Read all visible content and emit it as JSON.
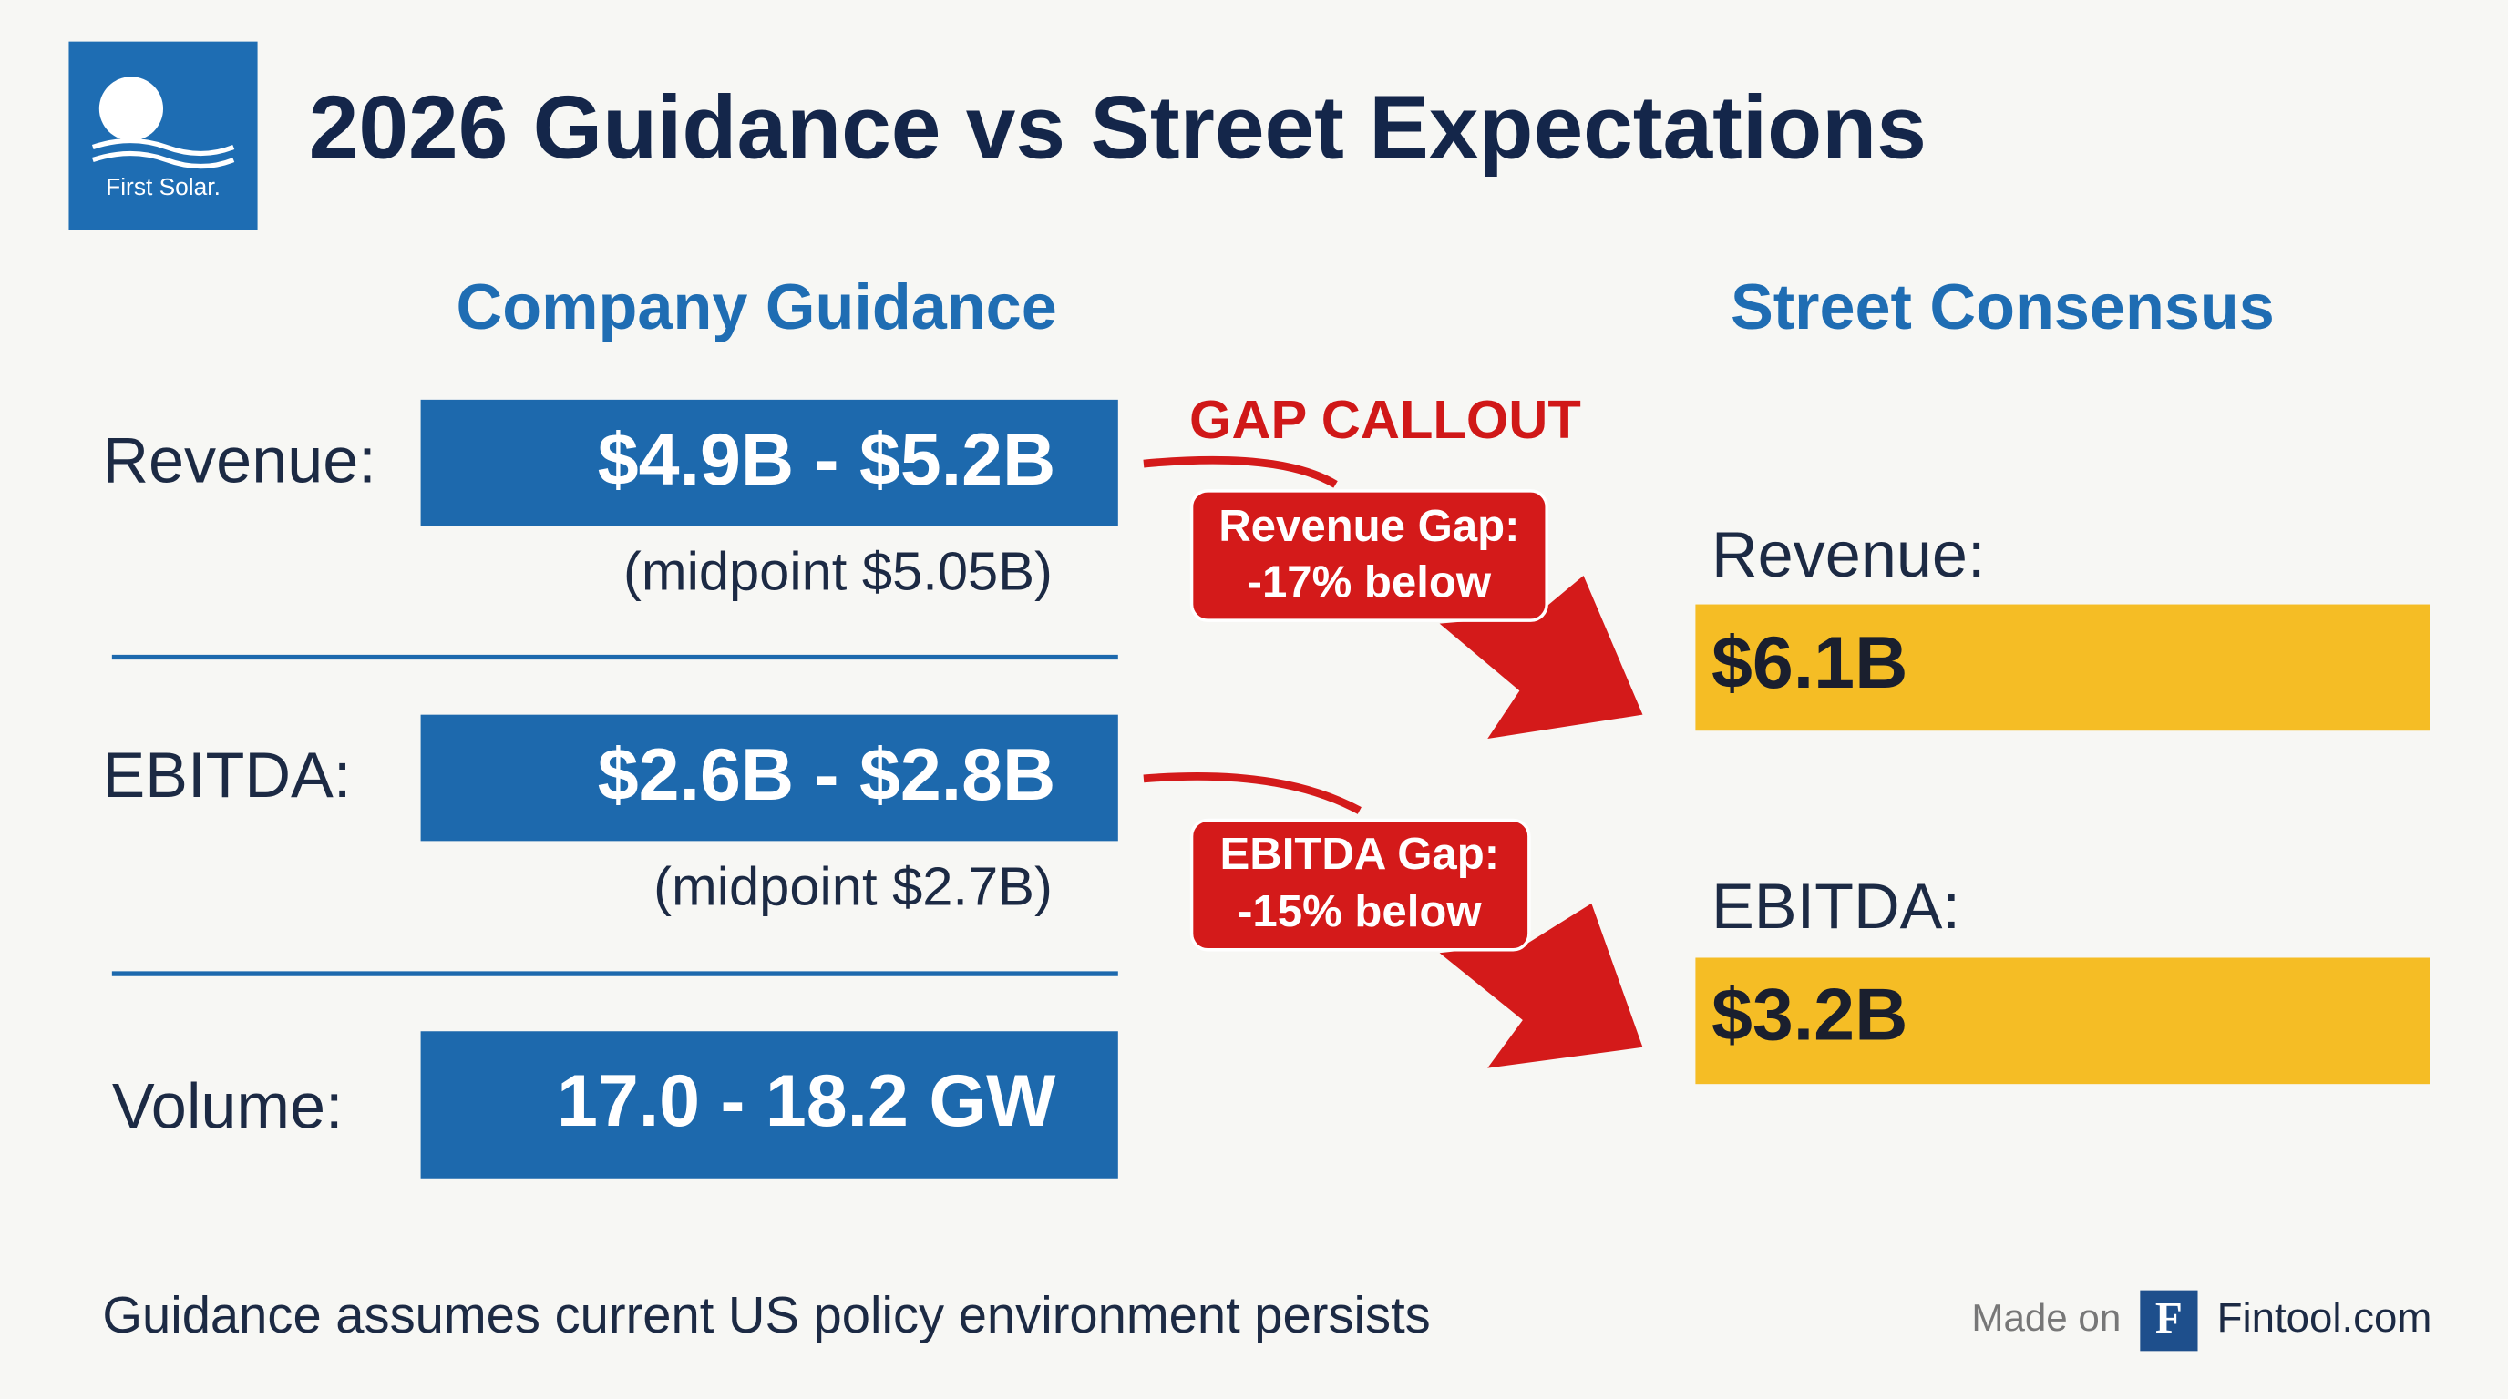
{
  "header": {
    "logo_text": "First Solar.",
    "title": "2026 Guidance vs Street Expectations"
  },
  "guidance": {
    "heading": "Company Guidance",
    "rows": [
      {
        "label": "Revenue:",
        "value": "$4.9B - $5.2B",
        "note": "(midpoint $5.05B)"
      },
      {
        "label": "EBITDA:",
        "value": "$2.6B - $2.8B",
        "note": "(midpoint $2.7B)"
      },
      {
        "label": "Volume:",
        "value": "17.0 - 18.2 GW"
      }
    ]
  },
  "callout": {
    "title": "GAP CALLOUT",
    "gaps": [
      {
        "line1": "Revenue Gap:",
        "line2": "-17% below"
      },
      {
        "line1": "EBITDA Gap:",
        "line2": "-15% below"
      }
    ]
  },
  "consensus": {
    "heading": "Street Consensus",
    "rows": [
      {
        "label": "Revenue:",
        "value": "$6.1B"
      },
      {
        "label": "EBITDA:",
        "value": "$3.2B"
      }
    ]
  },
  "footer": {
    "note": "Guidance assumes current US policy environment persists",
    "made_on": "Made on",
    "brand_icon": "F",
    "brand": "Fintool.com"
  }
}
